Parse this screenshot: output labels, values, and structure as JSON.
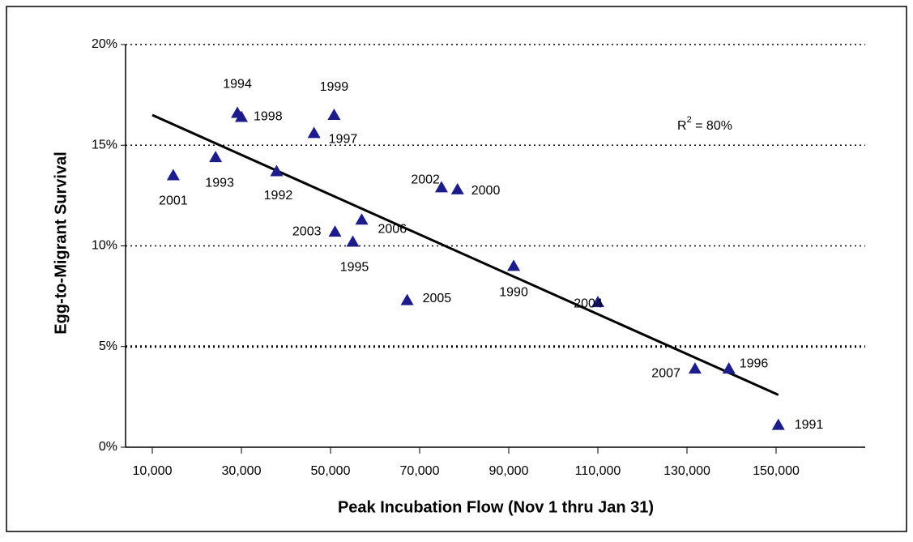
{
  "chart_data": {
    "type": "scatter",
    "x_label": "Peak Incubation Flow (Nov 1 thru Jan 31)",
    "y_label": "Egg-to-Migrant Survival",
    "annotation": {
      "base": "R",
      "sup": "2",
      "rest": " = 80%"
    },
    "xlim": [
      4000,
      170000
    ],
    "ylim": [
      0,
      20
    ],
    "xticks": [
      {
        "value": 10000,
        "label": "10,000"
      },
      {
        "value": 30000,
        "label": "30,000"
      },
      {
        "value": 50000,
        "label": "50,000"
      },
      {
        "value": 70000,
        "label": "70,000"
      },
      {
        "value": 90000,
        "label": "90,000"
      },
      {
        "value": 110000,
        "label": "110,000"
      },
      {
        "value": 130000,
        "label": "130,000"
      },
      {
        "value": 150000,
        "label": "150,000"
      }
    ],
    "yticks": [
      {
        "value": 0,
        "label": "0%"
      },
      {
        "value": 5,
        "label": "5%"
      },
      {
        "value": 10,
        "label": "10%"
      },
      {
        "value": 15,
        "label": "15%"
      },
      {
        "value": 20,
        "label": "20%"
      }
    ],
    "grid": true,
    "series": [
      {
        "color": "#1c1c8a",
        "labels": [
          "2001",
          "1993",
          "1994",
          "1998",
          "1992",
          "1997",
          "1999",
          "2003",
          "1995",
          "2006",
          "2005",
          "2002",
          "2000",
          "1990",
          "2004",
          "2007",
          "1996",
          "1991"
        ],
        "x": [
          14700,
          24200,
          29100,
          30000,
          37900,
          46300,
          50800,
          51000,
          55000,
          57000,
          67200,
          74900,
          78500,
          91100,
          110000,
          131800,
          139400,
          150500
        ],
        "values": [
          13.5,
          14.4,
          16.6,
          16.4,
          13.7,
          15.6,
          16.5,
          10.7,
          10.2,
          11.3,
          7.3,
          12.9,
          12.8,
          9.0,
          7.2,
          3.9,
          3.9,
          1.1
        ]
      }
    ],
    "trendline": {
      "color": "#000000",
      "x": [
        10000,
        150500
      ],
      "values": [
        16.5,
        2.6
      ]
    }
  }
}
